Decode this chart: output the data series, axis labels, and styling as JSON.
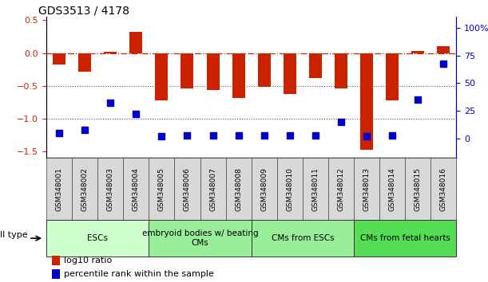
{
  "title": "GDS3513 / 4178",
  "samples": [
    "GSM348001",
    "GSM348002",
    "GSM348003",
    "GSM348004",
    "GSM348005",
    "GSM348006",
    "GSM348007",
    "GSM348008",
    "GSM348009",
    "GSM348010",
    "GSM348011",
    "GSM348012",
    "GSM348013",
    "GSM348014",
    "GSM348015",
    "GSM348016"
  ],
  "log10_ratio": [
    -0.18,
    -0.28,
    0.02,
    0.32,
    -0.72,
    -0.54,
    -0.56,
    -0.68,
    -0.52,
    -0.62,
    -0.38,
    -0.54,
    -1.48,
    -0.72,
    0.03,
    0.1
  ],
  "percentile_rank": [
    5,
    8,
    32,
    22,
    2,
    3,
    3,
    3,
    3,
    3,
    3,
    15,
    2,
    3,
    35,
    68
  ],
  "cell_type_groups": [
    {
      "label": "ESCs",
      "start": 0,
      "end": 3,
      "color": "#ccffcc"
    },
    {
      "label": "embryoid bodies w/ beating\nCMs",
      "start": 4,
      "end": 7,
      "color": "#99ee99"
    },
    {
      "label": "CMs from ESCs",
      "start": 8,
      "end": 11,
      "color": "#99ee99"
    },
    {
      "label": "CMs from fetal hearts",
      "start": 12,
      "end": 15,
      "color": "#55dd55"
    }
  ],
  "bar_color": "#cc2200",
  "dot_color": "#0000cc",
  "ref_line_color": "#cc2200",
  "dotted_line_color": "#555555",
  "ylim_left": [
    -1.6,
    0.55
  ],
  "ylim_right": [
    -17.6,
    110
  ],
  "yticks_left": [
    -1.5,
    -1.0,
    -0.5,
    0.0,
    0.5
  ],
  "yticks_right": [
    0,
    25,
    50,
    75,
    100
  ],
  "ytick_labels_right": [
    "0",
    "25",
    "50",
    "75",
    "100%"
  ],
  "bar_width": 0.5,
  "dot_size": 30,
  "legend_items": [
    "log10 ratio",
    "percentile rank within the sample"
  ],
  "legend_colors": [
    "#cc2200",
    "#0000cc"
  ],
  "cell_type_label": "cell type",
  "sample_box_color": "#d8d8d8",
  "cell_type_label_fontsize": 8,
  "tick_fontsize": 8,
  "bar_fontsize": 7
}
